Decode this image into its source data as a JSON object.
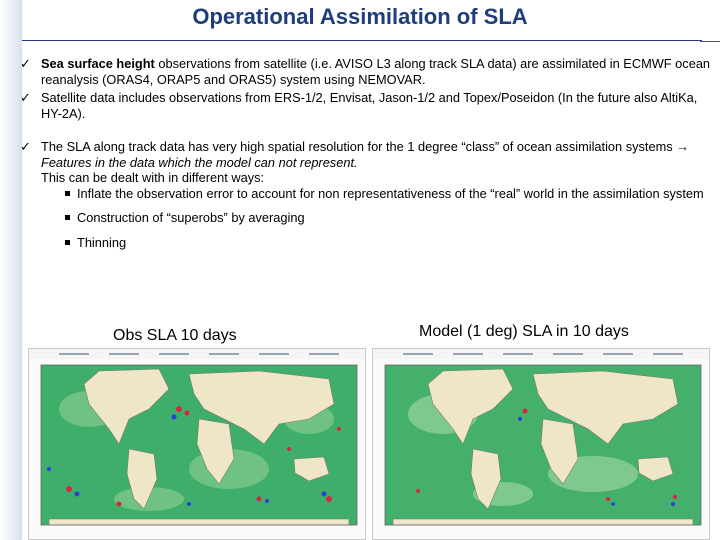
{
  "slide": {
    "title": "Operational Assimilation of SLA"
  },
  "icons": {
    "bullet_check": "checkmark-icon",
    "sub_bullet": "square-bullet-icon",
    "arrow": "right-arrow-icon"
  },
  "bullets": [
    {
      "bold": "Sea surface height",
      "text": " observations from satellite (i.e. AVISO L3 along track SLA  data) are assimilated in ECMWF ocean reanalysis (ORAS4, ORAP5 and ORAS5) system using NEMOVAR."
    },
    {
      "text": "Satellite data includes observations from ERS-1/2, Envisat, Jason-1/2 and Topex/Poseidon (In the future also AltiKa, HY-2A)."
    },
    {
      "text_a": "The SLA along track data has very high spatial resolution for the 1 degree “class” of ocean assimilation systems ",
      "arrow": "→",
      "italic": " Features in the data which the model can not represent.",
      "text_b": "This can be dealt with in different ways:",
      "subs": [
        "Inflate the observation error to account for non representativeness of the “real” world in the assimilation system",
        "Construction of “superobs” by averaging",
        "Thinning"
      ]
    }
  ],
  "figures": {
    "obs_caption": "Obs SLA 10 days",
    "model_caption": "Model (1 deg)  SLA in 10 days"
  },
  "colors": {
    "title": "#1f3d7a",
    "ocean": "#3fae6a",
    "land": "#efe6c8"
  }
}
